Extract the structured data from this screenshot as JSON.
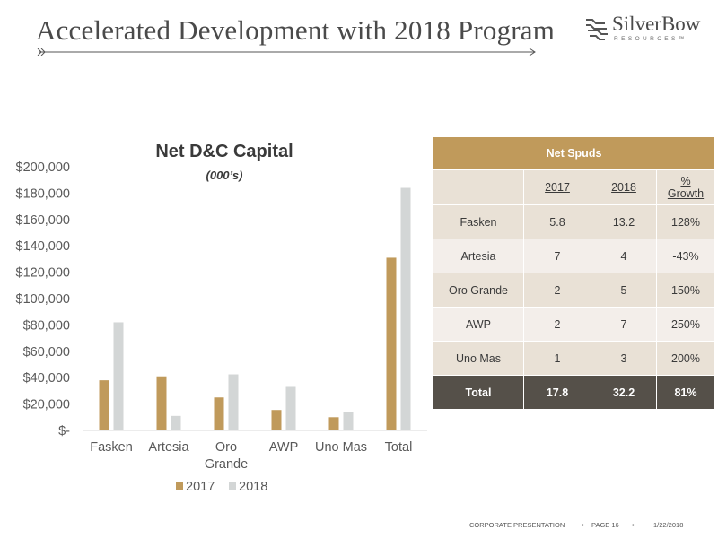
{
  "slide": {
    "title": "Accelerated Development with 2018 Program"
  },
  "logo": {
    "name": "SilverBow",
    "subtitle": "RESOURCES™"
  },
  "colors": {
    "series_2017": "#c09a5b",
    "series_2018": "#d3d6d6",
    "table_header": "#c09a5b",
    "table_total": "#555049"
  },
  "chart_data": {
    "type": "bar",
    "title": "Net D&C Capital",
    "subtitle": "(000’s)",
    "categories": [
      [
        "Fasken"
      ],
      [
        "Artesia"
      ],
      [
        "Oro",
        "Grande"
      ],
      [
        "AWP"
      ],
      [
        "Uno Mas"
      ],
      [
        "Total"
      ]
    ],
    "series": [
      {
        "name": "2017",
        "values": [
          38000,
          41000,
          25000,
          15500,
          10000,
          131000
        ]
      },
      {
        "name": "2018",
        "values": [
          82000,
          11000,
          42500,
          33000,
          14000,
          184000
        ]
      }
    ],
    "ylim": [
      0,
      200000
    ],
    "yticks": [
      "$-",
      "$20,000",
      "$40,000",
      "$60,000",
      "$80,000",
      "$100,000",
      "$120,000",
      "$140,000",
      "$160,000",
      "$180,000",
      "$200,000"
    ],
    "legend": "bottom",
    "grid": false
  },
  "table": {
    "header": "Net Spuds",
    "columns": [
      "2017",
      "2018",
      "%",
      "Growth"
    ],
    "rows": [
      {
        "name": "Fasken",
        "y2017": "5.8",
        "y2018": "13.2",
        "growth": "128%"
      },
      {
        "name": "Artesia",
        "y2017": "7",
        "y2018": "4",
        "growth": "-43%"
      },
      {
        "name": "Oro Grande",
        "y2017": "2",
        "y2018": "5",
        "growth": "150%"
      },
      {
        "name": "AWP",
        "y2017": "2",
        "y2018": "7",
        "growth": "250%"
      },
      {
        "name": "Uno Mas",
        "y2017": "1",
        "y2018": "3",
        "growth": "200%"
      }
    ],
    "total": {
      "name": "Total",
      "y2017": "17.8",
      "y2018": "32.2",
      "growth": "81%"
    }
  },
  "footer": {
    "label": "CORPORATE PRESENTATION",
    "page": "PAGE 16",
    "date": "1/22/2018"
  }
}
